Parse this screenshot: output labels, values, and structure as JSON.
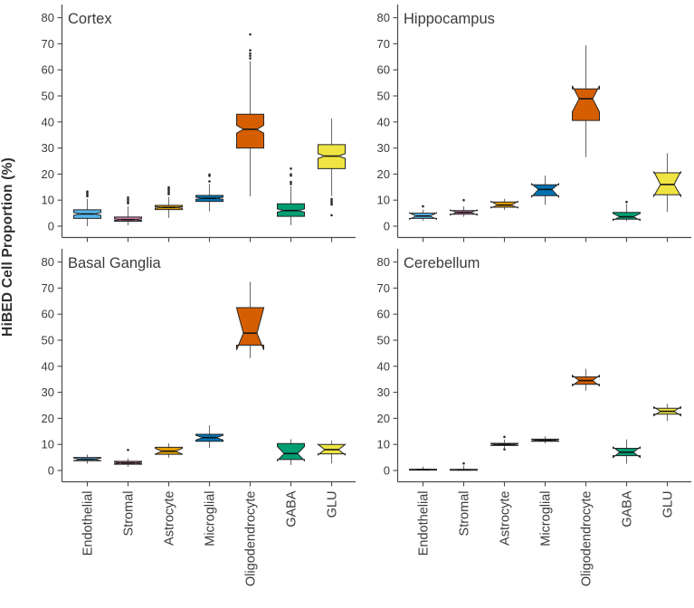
{
  "figure": {
    "ylabel": "HiBED Cell Proportion (%)",
    "background": "#ffffff",
    "axis_color": "#4a4a4a",
    "text_color": "#3b3b3b",
    "whisker_color": "#6e6e6e",
    "box_stroke_color": "#262626",
    "outlier_color": "#2b2b2b"
  },
  "chart_data": {
    "type": "boxplot",
    "notched": true,
    "grid": false,
    "ylabel": "HiBED Cell Proportion (%)",
    "ylim": [
      0,
      80
    ],
    "yticks": [
      0,
      10,
      20,
      30,
      40,
      50,
      60,
      70,
      80
    ],
    "categories": [
      "Endothelial",
      "Stromal",
      "Astrocyte",
      "Microglial",
      "Oligodendrocyte",
      "GABA",
      "GLU"
    ],
    "colors": [
      "#56B4E9",
      "#CC79A7",
      "#E69F00",
      "#0072B2",
      "#D55E00",
      "#009E73",
      "#F0E442"
    ],
    "panels": [
      {
        "title": "Cortex",
        "boxes": [
          {
            "category": "Endothelial",
            "low": 0.0,
            "q1": 3.0,
            "median": 4.7,
            "q3": 6.3,
            "high": 10.5,
            "notch": [
              4.2,
              5.2
            ],
            "outliers": [
              11.5,
              12.1,
              12.7,
              13.3
            ]
          },
          {
            "category": "Stromal",
            "low": 0.3,
            "q1": 1.9,
            "median": 2.5,
            "q3": 3.5,
            "high": 7.6,
            "notch": [
              2.2,
              2.8
            ],
            "outliers": [
              8.8,
              9.5,
              10.2,
              11.0
            ]
          },
          {
            "category": "Astrocyte",
            "low": 3.2,
            "q1": 6.4,
            "median": 7.2,
            "q3": 8.0,
            "high": 11.2,
            "notch": [
              6.9,
              7.5
            ],
            "outliers": [
              12.3,
              12.9,
              13.6,
              14.3,
              14.9
            ]
          },
          {
            "category": "Microglial",
            "low": 5.7,
            "q1": 9.5,
            "median": 10.7,
            "q3": 11.8,
            "high": 16.3,
            "notch": [
              10.3,
              11.1
            ],
            "outliers": [
              17.2,
              19.3,
              19.8
            ]
          },
          {
            "category": "Oligodendrocyte",
            "low": 11.5,
            "q1": 30.0,
            "median": 37.2,
            "q3": 43.0,
            "high": 63.3,
            "notch": [
              35.7,
              38.7
            ],
            "outliers": [
              64.4,
              65.4,
              66.3,
              67.5,
              73.6
            ]
          },
          {
            "category": "GABA",
            "low": 0.4,
            "q1": 3.8,
            "median": 6.0,
            "q3": 8.6,
            "high": 15.4,
            "notch": [
              5.4,
              6.6
            ],
            "outliers": [
              16.2,
              17.0,
              19.4,
              19.9,
              22.1
            ]
          },
          {
            "category": "GLU",
            "low": 11.6,
            "q1": 22.1,
            "median": 26.9,
            "q3": 31.3,
            "high": 41.3,
            "notch": [
              26.0,
              27.8
            ],
            "outliers": [
              10.4,
              9.7,
              9.0,
              8.3,
              4.2
            ]
          }
        ]
      },
      {
        "title": "Hippocampus",
        "boxes": [
          {
            "category": "Endothelial",
            "low": 2.1,
            "q1": 3.0,
            "median": 3.9,
            "q3": 5.0,
            "high": 6.3,
            "notch": [
              2.7,
              5.1
            ],
            "outliers": [
              7.6
            ]
          },
          {
            "category": "Stromal",
            "low": 3.6,
            "q1": 4.6,
            "median": 5.3,
            "q3": 6.0,
            "high": 7.6,
            "notch": [
              4.3,
              6.2
            ],
            "outliers": [
              10.0
            ]
          },
          {
            "category": "Astrocyte",
            "low": 6.2,
            "q1": 7.3,
            "median": 8.1,
            "q3": 9.3,
            "high": 10.5,
            "notch": [
              7.0,
              9.5
            ],
            "outliers": []
          },
          {
            "category": "Microglial",
            "low": 8.2,
            "q1": 11.7,
            "median": 14.1,
            "q3": 15.9,
            "high": 19.4,
            "notch": [
              11.2,
              16.3
            ],
            "outliers": []
          },
          {
            "category": "Oligodendrocyte",
            "low": 26.5,
            "q1": 40.6,
            "median": 48.9,
            "q3": 52.7,
            "high": 69.4,
            "notch": [
              43.9,
              53.9
            ],
            "outliers": []
          },
          {
            "category": "GABA",
            "low": 1.9,
            "q1": 2.7,
            "median": 3.6,
            "q3": 5.3,
            "high": 8.5,
            "notch": [
              2.3,
              4.9
            ],
            "outliers": [
              9.3
            ]
          },
          {
            "category": "GLU",
            "low": 5.5,
            "q1": 12.1,
            "median": 16.0,
            "q3": 20.5,
            "high": 28.0,
            "notch": [
              11.5,
              21.0
            ],
            "outliers": []
          }
        ]
      },
      {
        "title": "Basal Ganglia",
        "boxes": [
          {
            "category": "Endothelial",
            "low": 2.6,
            "q1": 3.7,
            "median": 4.3,
            "q3": 5.0,
            "high": 6.1,
            "notch": [
              3.8,
              4.8
            ],
            "outliers": []
          },
          {
            "category": "Stromal",
            "low": 1.5,
            "q1": 2.4,
            "median": 2.9,
            "q3": 3.5,
            "high": 4.6,
            "notch": [
              2.6,
              3.2
            ],
            "outliers": [
              7.9
            ]
          },
          {
            "category": "Astrocyte",
            "low": 4.9,
            "q1": 6.2,
            "median": 7.4,
            "q3": 8.9,
            "high": 10.4,
            "notch": [
              6.3,
              8.5
            ],
            "outliers": []
          },
          {
            "category": "Microglial",
            "low": 8.6,
            "q1": 11.2,
            "median": 12.6,
            "q3": 13.9,
            "high": 17.3,
            "notch": [
              11.7,
              13.5
            ],
            "outliers": []
          },
          {
            "category": "Oligodendrocyte",
            "low": 43.2,
            "q1": 48.1,
            "median": 52.7,
            "q3": 62.5,
            "high": 72.4,
            "notch": [
              46.3,
              62.3
            ],
            "outliers": []
          },
          {
            "category": "GABA",
            "low": 2.1,
            "q1": 4.2,
            "median": 6.5,
            "q3": 10.3,
            "high": 12.0,
            "notch": [
              3.8,
              9.2
            ],
            "outliers": []
          },
          {
            "category": "GLU",
            "low": 2.7,
            "q1": 6.4,
            "median": 8.0,
            "q3": 10.0,
            "high": 11.5,
            "notch": [
              6.0,
              10.0
            ],
            "outliers": []
          }
        ]
      },
      {
        "title": "Cerebellum",
        "boxes": [
          {
            "category": "Endothelial",
            "low": 0.0,
            "q1": 0.15,
            "median": 0.3,
            "q3": 0.5,
            "high": 1.5,
            "notch": [
              0.2,
              0.4
            ],
            "outliers": []
          },
          {
            "category": "Stromal",
            "low": 0.0,
            "q1": 0.1,
            "median": 0.25,
            "q3": 0.45,
            "high": 1.9,
            "notch": [
              0.15,
              0.35
            ],
            "outliers": [
              2.7
            ]
          },
          {
            "category": "Astrocyte",
            "low": 8.6,
            "q1": 9.6,
            "median": 10.0,
            "q3": 10.4,
            "high": 11.9,
            "notch": [
              9.7,
              10.3
            ],
            "outliers": [
              12.9,
              8.1
            ]
          },
          {
            "category": "Microglial",
            "low": 10.4,
            "q1": 11.2,
            "median": 11.6,
            "q3": 12.0,
            "high": 13.1,
            "notch": [
              11.3,
              11.9
            ],
            "outliers": []
          },
          {
            "category": "Oligodendrocyte",
            "low": 30.6,
            "q1": 33.1,
            "median": 34.5,
            "q3": 35.9,
            "high": 39.0,
            "notch": [
              32.5,
              36.5
            ],
            "outliers": []
          },
          {
            "category": "GABA",
            "low": 2.6,
            "q1": 5.7,
            "median": 7.0,
            "q3": 8.5,
            "high": 11.9,
            "notch": [
              5.0,
              9.0
            ],
            "outliers": []
          },
          {
            "category": "GLU",
            "low": 19.0,
            "q1": 21.6,
            "median": 22.7,
            "q3": 23.9,
            "high": 25.6,
            "notch": [
              21.0,
              24.4
            ],
            "outliers": []
          }
        ]
      }
    ]
  }
}
